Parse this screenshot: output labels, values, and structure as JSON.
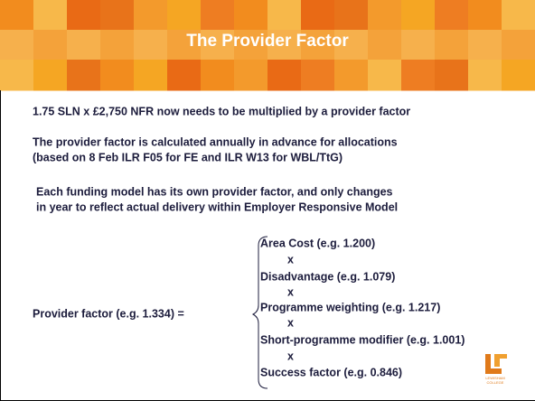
{
  "header": {
    "title": "The Provider Factor"
  },
  "body": {
    "lines": [
      "1.75 SLN x £2,750 NFR now needs to be multiplied by a provider factor",
      "The provider factor is calculated annually in advance for allocations",
      "(based on 8 Feb ILR F05 for FE and ILR W13 for WBL/TtG)",
      "Each funding model has its own provider factor, and only changes",
      "in year to reflect actual delivery within Employer Responsive Model"
    ]
  },
  "formula": {
    "label": "Provider factor (e.g. 1.334) =",
    "factors": [
      "Area Cost (e.g. 1.200)",
      "Disadvantage (e.g. 1.079)",
      "Programme weighting (e.g. 1.217)",
      "Short-programme modifier (e.g. 1.001)",
      "Success factor (e.g. 0.846)"
    ],
    "operators": [
      "x",
      "x",
      "x",
      "x"
    ]
  },
  "logo": {
    "lines": [
      "LEWISHAM",
      "COLLEGE"
    ]
  }
}
